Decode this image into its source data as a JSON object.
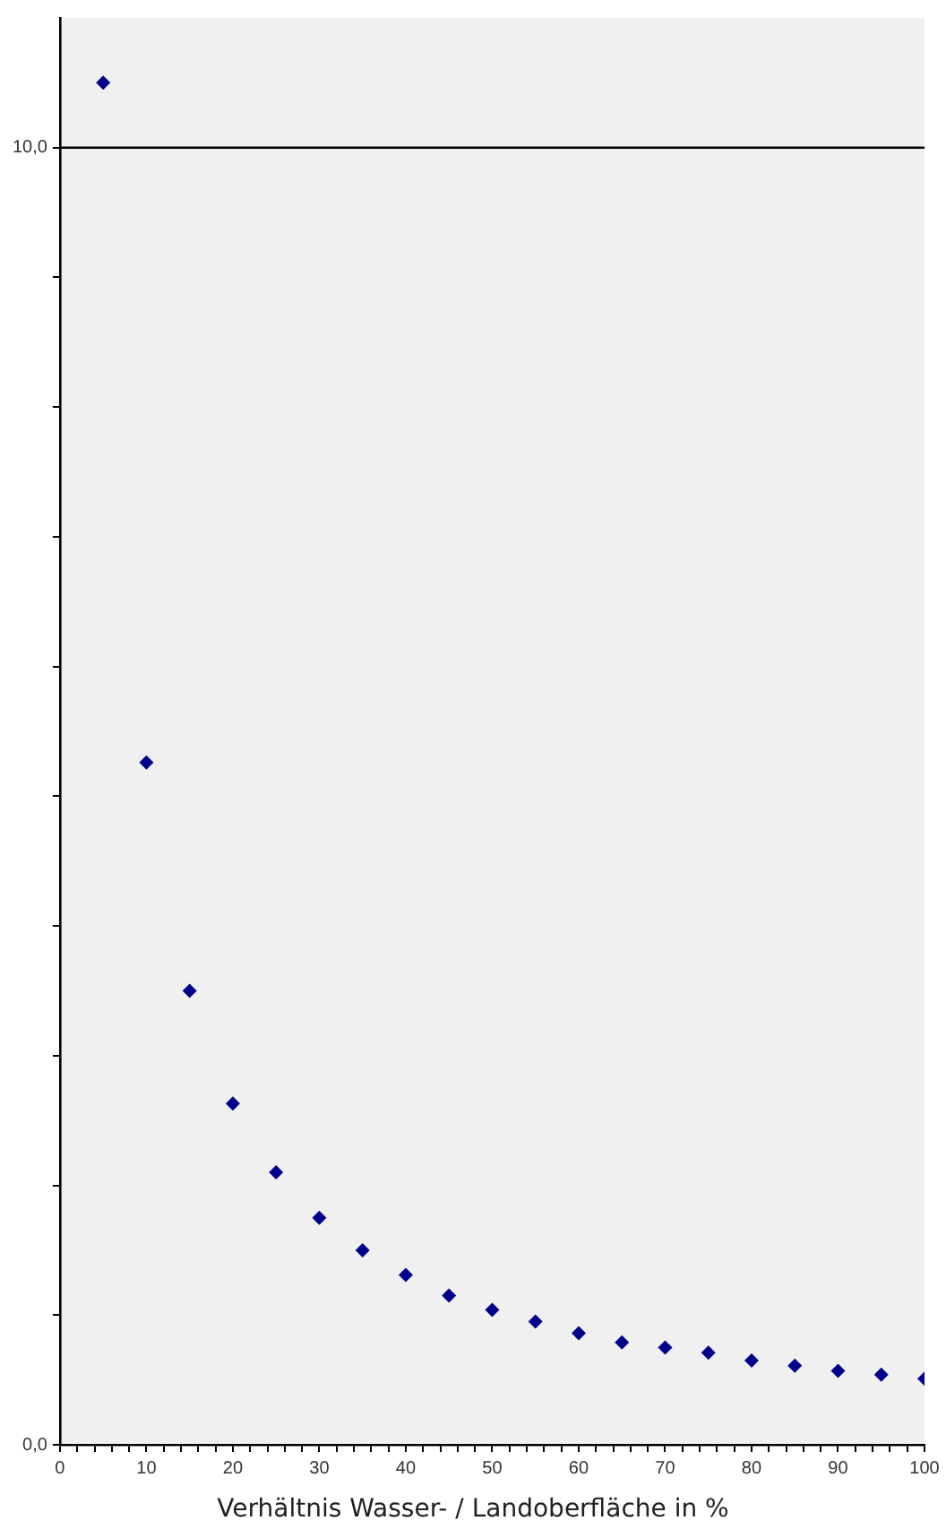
{
  "chart_data": {
    "type": "scatter",
    "xlabel": "Verhältnis Wasser- / Landoberfläche in %",
    "x": [
      5,
      10,
      15,
      20,
      25,
      30,
      35,
      40,
      45,
      50,
      55,
      60,
      65,
      70,
      75,
      80,
      85,
      90,
      95,
      100
    ],
    "series": [
      {
        "color": "#00008b",
        "values": [
          10.5,
          5.26,
          3.5,
          2.63,
          2.1,
          1.75,
          1.5,
          1.31,
          1.15,
          1.04,
          0.95,
          0.86,
          0.79,
          0.75,
          0.71,
          0.65,
          0.61,
          0.57,
          0.54,
          0.51
        ]
      }
    ],
    "xlim": [
      0,
      100
    ],
    "ylim": [
      0,
      11
    ],
    "xticks": [
      0,
      {
        "value": 2,
        "label": null
      },
      {
        "value": 4,
        "label": null
      },
      {
        "value": 6,
        "label": null
      },
      {
        "value": 8,
        "label": null
      },
      10,
      {
        "value": 12,
        "label": null
      },
      {
        "value": 14,
        "label": null
      },
      {
        "value": 16,
        "label": null
      },
      {
        "value": 18,
        "label": null
      },
      20,
      {
        "value": 22,
        "label": null
      },
      {
        "value": 24,
        "label": null
      },
      {
        "value": 26,
        "label": null
      },
      {
        "value": 28,
        "label": null
      },
      30,
      {
        "value": 32,
        "label": null
      },
      {
        "value": 34,
        "label": null
      },
      {
        "value": 36,
        "label": null
      },
      {
        "value": 38,
        "label": null
      },
      40,
      {
        "value": 42,
        "label": null
      },
      {
        "value": 44,
        "label": null
      },
      {
        "value": 46,
        "label": null
      },
      {
        "value": 48,
        "label": null
      },
      50,
      {
        "value": 52,
        "label": null
      },
      {
        "value": 54,
        "label": null
      },
      {
        "value": 56,
        "label": null
      },
      {
        "value": 58,
        "label": null
      },
      60,
      {
        "value": 62,
        "label": null
      },
      {
        "value": 64,
        "label": null
      },
      {
        "value": 66,
        "label": null
      },
      {
        "value": 68,
        "label": null
      },
      70,
      {
        "value": 72,
        "label": null
      },
      {
        "value": 74,
        "label": null
      },
      {
        "value": 76,
        "label": null
      },
      {
        "value": 78,
        "label": null
      },
      80,
      {
        "value": 82,
        "label": null
      },
      {
        "value": 84,
        "label": null
      },
      {
        "value": 86,
        "label": null
      },
      {
        "value": 88,
        "label": null
      },
      90,
      {
        "value": 92,
        "label": null
      },
      {
        "value": 94,
        "label": null
      },
      {
        "value": 96,
        "label": null
      },
      {
        "value": 98,
        "label": null
      },
      100
    ],
    "yticks": [
      {
        "value": 0,
        "label": "0,0"
      },
      {
        "value": 1,
        "label": null
      },
      {
        "value": 2,
        "label": null
      },
      {
        "value": 3,
        "label": null
      },
      {
        "value": 4,
        "label": null
      },
      {
        "value": 5,
        "label": null
      },
      {
        "value": 6,
        "label": null
      },
      {
        "value": 7,
        "label": null
      },
      {
        "value": 8,
        "label": null
      },
      {
        "value": 9,
        "label": null
      },
      {
        "value": 10,
        "label": "10,0"
      }
    ],
    "ref_lines": [
      {
        "axis": "y",
        "value": 10,
        "color": "#000000"
      }
    ],
    "marker": "diamond",
    "grid": false,
    "legend": false
  }
}
